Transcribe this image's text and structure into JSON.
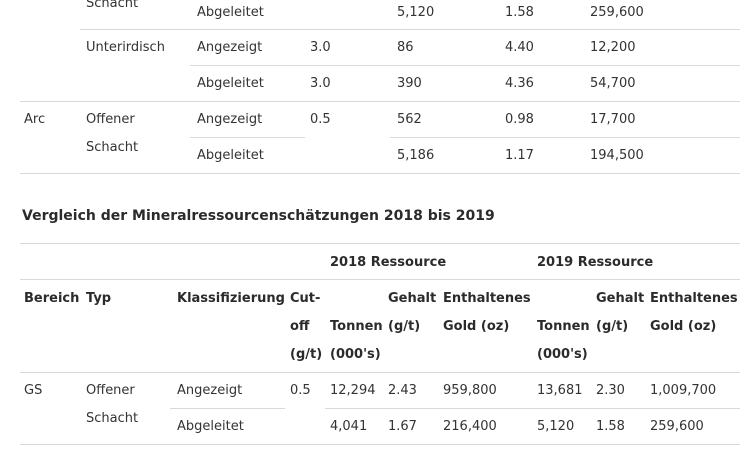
{
  "table1": {
    "row_a": {
      "typ": "Schacht",
      "klass": "Abgeleitet",
      "tonnen": "5,120",
      "gehalt": "1.58",
      "gold": "259,600"
    },
    "row_b": {
      "typ": "Unterirdisch",
      "klass": "Angezeigt",
      "cutoff": "3.0",
      "tonnen": "86",
      "gehalt": "4.40",
      "gold": "12,200"
    },
    "row_c": {
      "klass": "Abgeleitet",
      "cutoff": "3.0",
      "tonnen": "390",
      "gehalt": "4.36",
      "gold": "54,700"
    },
    "row_d": {
      "bereich": "Arc",
      "typ": "Offener",
      "klass": "Angezeigt",
      "cutoff": "0.5",
      "tonnen": "562",
      "gehalt": "0.98",
      "gold": "17,700"
    },
    "row_e": {
      "typ": "Schacht",
      "klass": "Abgeleitet",
      "tonnen": "5,186",
      "gehalt": "1.17",
      "gold": "194,500"
    }
  },
  "section_heading": "Vergleich der Mineralressourcenschätzungen 2018 bis 2019",
  "table2": {
    "group_2018": "2018 Ressource",
    "group_2019": "2019 Ressource",
    "headers": {
      "bereich": "Bereich",
      "typ": "Typ",
      "klass": "Klassifizierung",
      "cut1": "Cut-",
      "cut2": "off",
      "cut3": "(g/t)",
      "tonnen1": "Tonnen",
      "tonnen2": "(000's)",
      "gehalt1": "Gehalt",
      "gehalt2": "(g/t)",
      "gold1": "Enthaltenes",
      "gold2": "Gold (oz)"
    },
    "row1": {
      "bereich": "GS",
      "typ": "Offener",
      "klass": "Angezeigt",
      "cutoff": "0.5",
      "t18": "12,294",
      "g18": "2.43",
      "o18": "959,800",
      "t19": "13,681",
      "g19": "2.30",
      "o19": "1,009,700"
    },
    "row2": {
      "typ": "Schacht",
      "klass": "Abgeleitet",
      "t18": "4,041",
      "g18": "1.67",
      "o18": "216,400",
      "t19": "5,120",
      "g19": "1.58",
      "o19": "259,600"
    }
  }
}
